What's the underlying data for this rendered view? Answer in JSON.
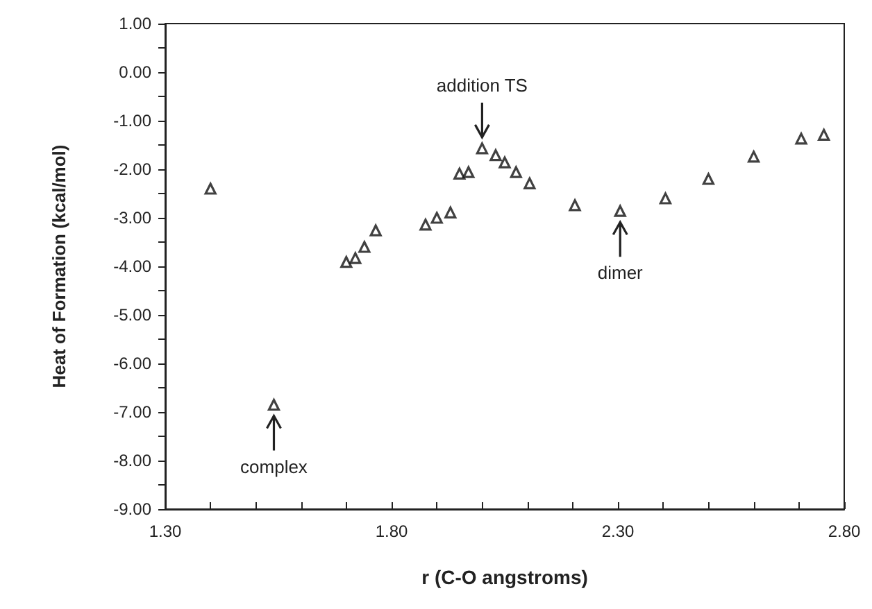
{
  "chart_data": {
    "type": "scatter",
    "xlabel": "r (C-O angstroms)",
    "ylabel": "Heat of Formation (kcal/mol)",
    "x": [
      1.4,
      1.54,
      1.7,
      1.72,
      1.74,
      1.765,
      1.875,
      1.9,
      1.93,
      1.95,
      1.97,
      2.0,
      2.03,
      2.05,
      2.075,
      2.105,
      2.205,
      2.305,
      2.405,
      2.5,
      2.6,
      2.705,
      2.755
    ],
    "series": [
      {
        "color": "#111111",
        "values": [
          -2.4,
          -6.85,
          -3.91,
          -3.83,
          -3.6,
          -3.26,
          -3.14,
          -3.0,
          -2.89,
          -2.09,
          -2.06,
          -1.57,
          -1.71,
          -1.86,
          -2.06,
          -2.29,
          -2.74,
          -2.86,
          -2.6,
          -2.2,
          -1.74,
          -1.37,
          -1.29
        ]
      }
    ],
    "xlim": [
      1.3,
      2.8
    ],
    "xticks": [
      {
        "value": 1.3,
        "label": "1.30"
      },
      {
        "value": 1.4,
        "label": null
      },
      {
        "value": 1.5,
        "label": null
      },
      {
        "value": 1.6,
        "label": null
      },
      {
        "value": 1.7,
        "label": null
      },
      {
        "value": 1.8,
        "label": "1.80"
      },
      {
        "value": 1.9,
        "label": null
      },
      {
        "value": 2.0,
        "label": null
      },
      {
        "value": 2.1,
        "label": null
      },
      {
        "value": 2.2,
        "label": null
      },
      {
        "value": 2.3,
        "label": "2.30"
      },
      {
        "value": 2.4,
        "label": null
      },
      {
        "value": 2.5,
        "label": null
      },
      {
        "value": 2.6,
        "label": null
      },
      {
        "value": 2.7,
        "label": null
      },
      {
        "value": 2.8,
        "label": "2.80"
      }
    ],
    "ylim": [
      -9,
      1
    ],
    "yticks": [
      {
        "value": -9,
        "label": "-9.00"
      },
      {
        "value": -8.5,
        "label": null
      },
      {
        "value": -8,
        "label": "-8.00"
      },
      {
        "value": -7.5,
        "label": null
      },
      {
        "value": -7,
        "label": "-7.00"
      },
      {
        "value": -6.5,
        "label": null
      },
      {
        "value": -6,
        "label": "-6.00"
      },
      {
        "value": -5.5,
        "label": null
      },
      {
        "value": -5,
        "label": "-5.00"
      },
      {
        "value": -4.5,
        "label": null
      },
      {
        "value": -4,
        "label": "-4.00"
      },
      {
        "value": -3.5,
        "label": null
      },
      {
        "value": -3,
        "label": "-3.00"
      },
      {
        "value": -2.5,
        "label": null
      },
      {
        "value": -2,
        "label": "-2.00"
      },
      {
        "value": -1.5,
        "label": null
      },
      {
        "value": -1,
        "label": "-1.00"
      },
      {
        "value": -0.5,
        "label": null
      },
      {
        "value": 0,
        "label": "0.00"
      },
      {
        "value": 0.5,
        "label": null
      },
      {
        "value": 1,
        "label": "1.00"
      }
    ],
    "annotations": [
      {
        "text": "addition TS",
        "x": 2.0,
        "y": -1.57
      },
      {
        "text": "dimer",
        "x": 2.305,
        "y": -2.86
      },
      {
        "text": "complex",
        "x": 1.54,
        "y": -6.85
      }
    ],
    "marker": "triangle"
  }
}
